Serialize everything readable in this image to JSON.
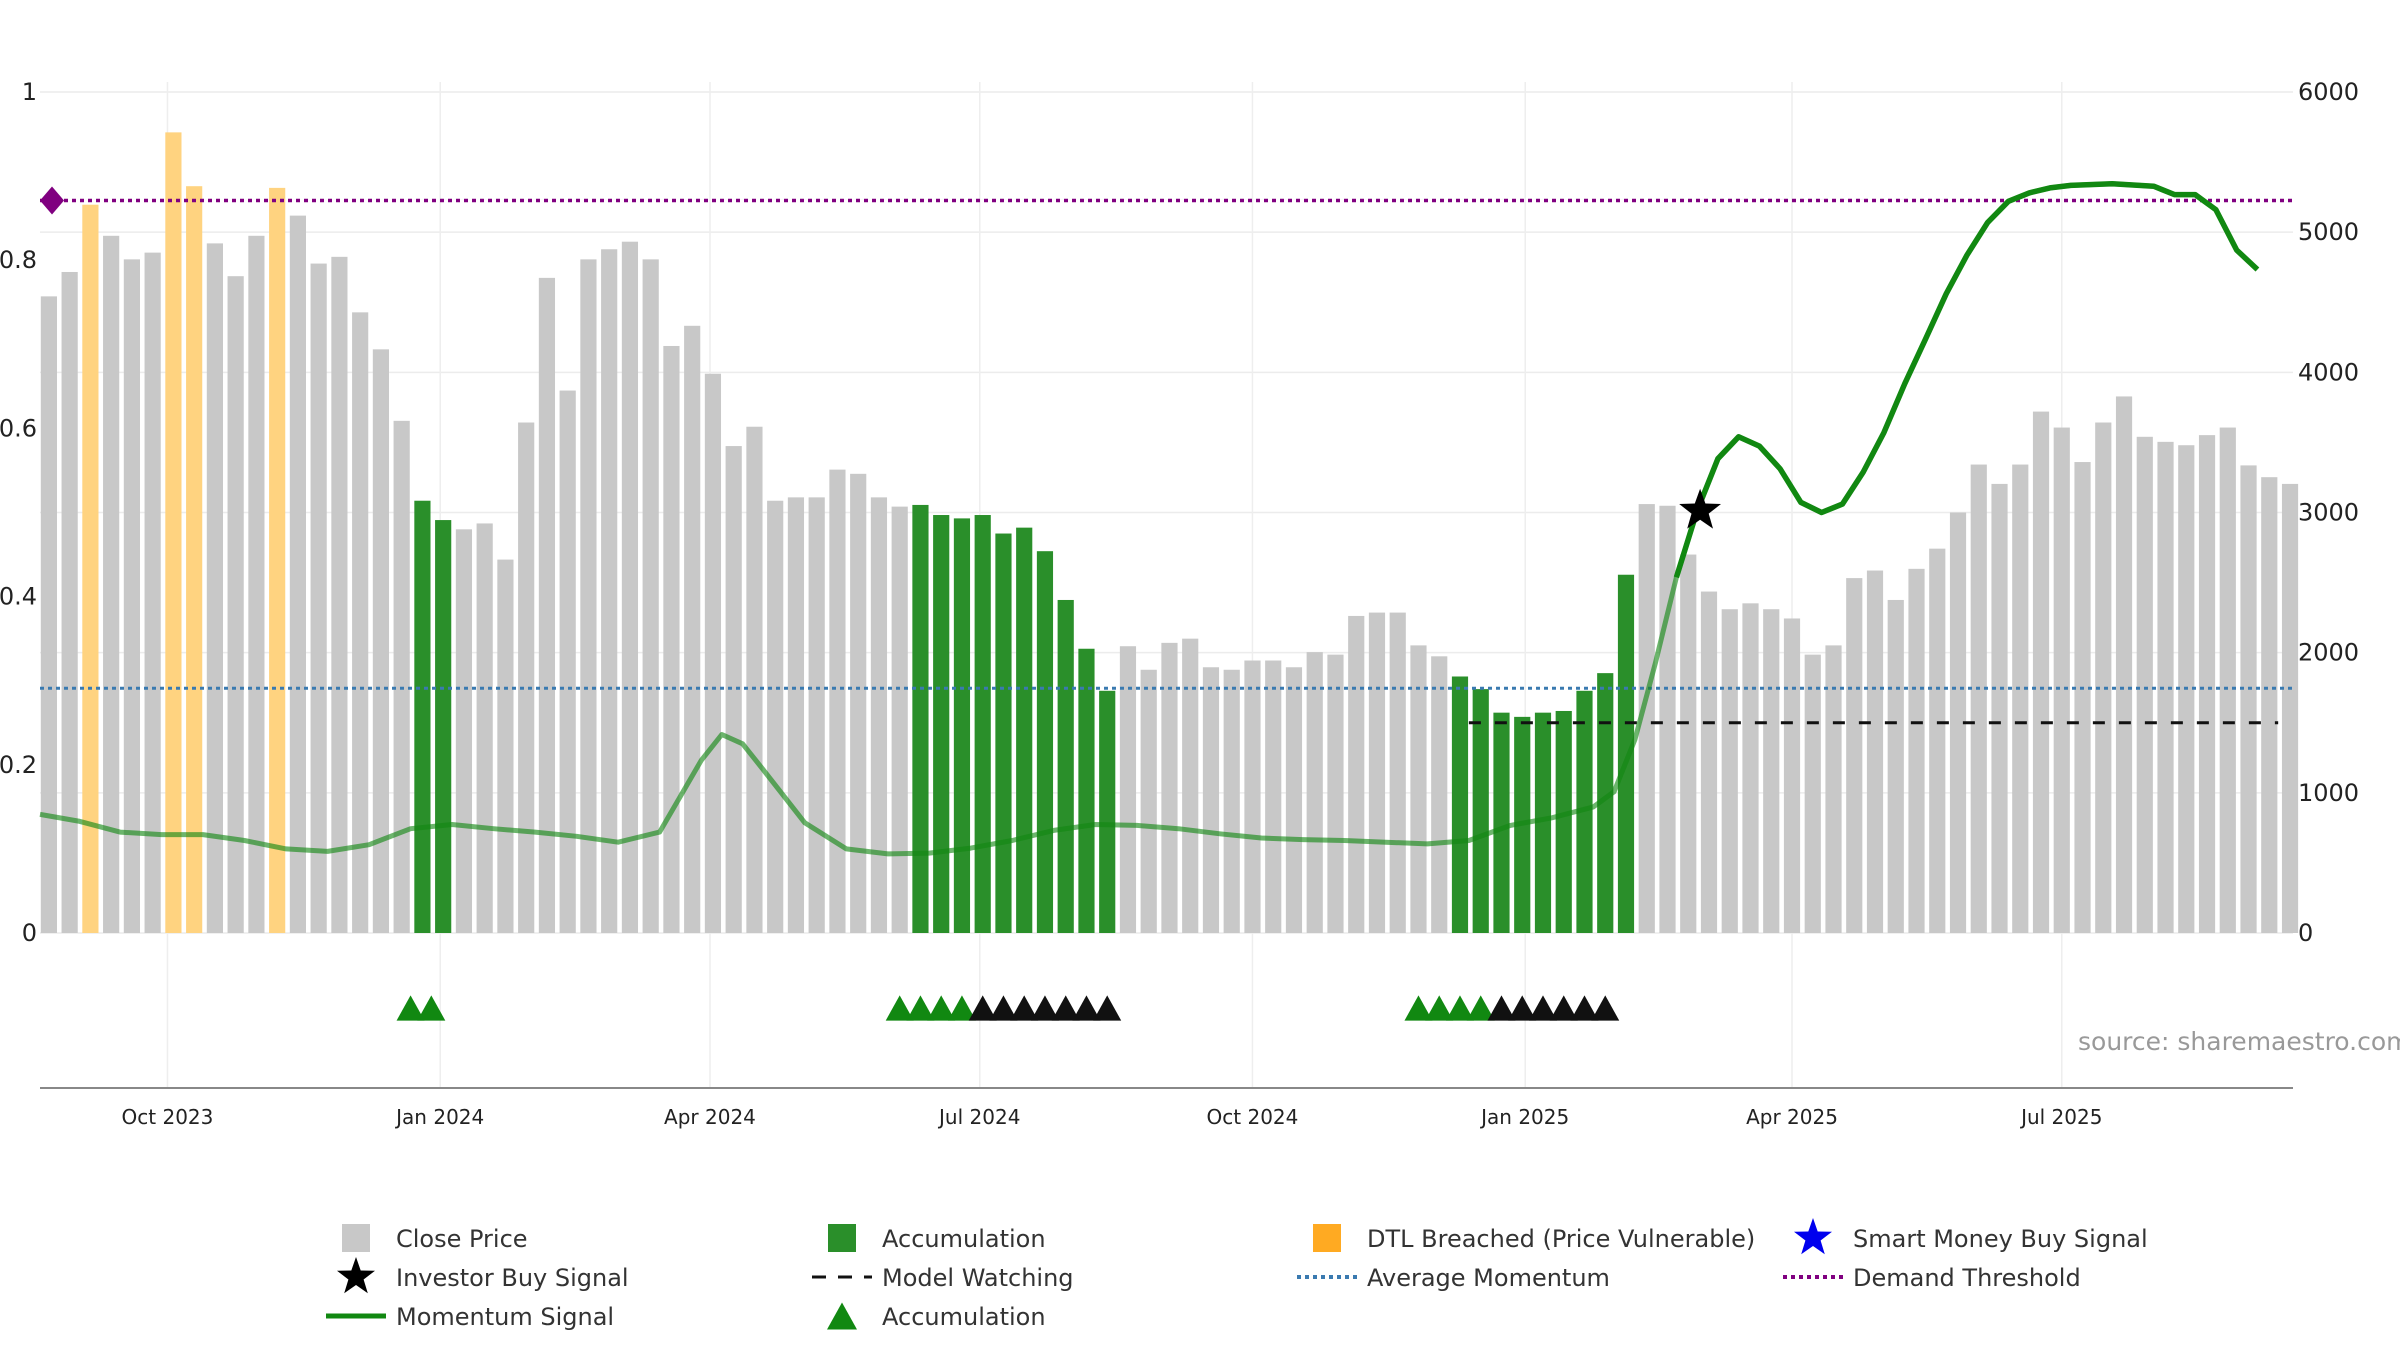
{
  "chart_data": {
    "type": "bar",
    "source": "source: sharemaestro.com",
    "left_axis": {
      "ylim": [
        0,
        1
      ],
      "ticks": [
        "0",
        "0.2",
        "0.4",
        "0.6",
        "0.8",
        "1"
      ]
    },
    "right_axis": {
      "ylim": [
        0,
        6000
      ],
      "ticks": [
        "0",
        "1000",
        "2000",
        "3000",
        "4000",
        "5000",
        "6000"
      ]
    },
    "x_axis": {
      "start": "2023-08-19",
      "end": "2025-09-17",
      "ticks": [
        {
          "label": "Oct 2023",
          "date": "2023-10-01"
        },
        {
          "label": "Jan 2024",
          "date": "2024-01-01"
        },
        {
          "label": "Apr 2024",
          "date": "2024-04-01"
        },
        {
          "label": "Jul 2024",
          "date": "2024-07-01"
        },
        {
          "label": "Oct 2024",
          "date": "2024-10-01"
        },
        {
          "label": "Jan 2025",
          "date": "2025-01-01"
        },
        {
          "label": "Apr 2025",
          "date": "2025-04-01"
        },
        {
          "label": "Jul 2025",
          "date": "2025-07-01"
        }
      ]
    },
    "bars": {
      "name": "Close Price",
      "first_date": "2023-08-22",
      "interval_days": 7,
      "values": [
        0.757,
        0.786,
        0.866,
        0.829,
        0.801,
        0.809,
        0.952,
        0.888,
        0.82,
        0.781,
        0.829,
        0.886,
        0.853,
        0.796,
        0.804,
        0.738,
        0.694,
        0.609,
        0.514,
        0.491,
        0.48,
        0.487,
        0.444,
        0.607,
        0.779,
        0.645,
        0.801,
        0.813,
        0.822,
        0.801,
        0.698,
        0.722,
        0.665,
        0.579,
        0.602,
        0.514,
        0.518,
        0.518,
        0.551,
        0.546,
        0.518,
        0.507,
        0.509,
        0.497,
        0.493,
        0.497,
        0.475,
        0.482,
        0.454,
        0.396,
        0.338,
        0.288,
        0.341,
        0.313,
        0.345,
        0.35,
        0.316,
        0.313,
        0.324,
        0.324,
        0.316,
        0.334,
        0.331,
        0.377,
        0.381,
        0.381,
        0.342,
        0.329,
        0.305,
        0.29,
        0.262,
        0.257,
        0.262,
        0.264,
        0.288,
        0.309,
        0.426,
        0.51,
        0.508,
        0.45,
        0.406,
        0.385,
        0.392,
        0.385,
        0.374,
        0.331,
        0.342,
        0.422,
        0.431,
        0.396,
        0.433,
        0.457,
        0.5,
        0.557,
        0.534,
        0.557,
        0.62,
        0.601,
        0.56,
        0.607,
        0.638,
        0.59,
        0.584,
        0.58,
        0.592,
        0.601,
        0.556,
        0.542,
        0.534
      ],
      "categories": [
        "gray",
        "gray",
        "orange",
        "gray",
        "gray",
        "gray",
        "orange",
        "orange",
        "gray",
        "gray",
        "gray",
        "orange",
        "gray",
        "gray",
        "gray",
        "gray",
        "gray",
        "gray",
        "green",
        "green",
        "gray",
        "gray",
        "gray",
        "gray",
        "gray",
        "gray",
        "gray",
        "gray",
        "gray",
        "gray",
        "gray",
        "gray",
        "gray",
        "gray",
        "gray",
        "gray",
        "gray",
        "gray",
        "gray",
        "gray",
        "gray",
        "gray",
        "green",
        "green",
        "green",
        "green",
        "green",
        "green",
        "green",
        "green",
        "green",
        "green",
        "gray",
        "gray",
        "gray",
        "gray",
        "gray",
        "gray",
        "gray",
        "gray",
        "gray",
        "gray",
        "gray",
        "gray",
        "gray",
        "gray",
        "gray",
        "gray",
        "green",
        "green",
        "green",
        "green",
        "green",
        "green",
        "green",
        "green",
        "green",
        "gray",
        "gray",
        "gray",
        "gray",
        "gray",
        "gray",
        "gray",
        "gray",
        "gray",
        "gray",
        "gray",
        "gray",
        "gray",
        "gray",
        "gray",
        "gray",
        "gray",
        "gray",
        "gray",
        "gray",
        "gray",
        "gray",
        "gray",
        "gray",
        "gray",
        "gray",
        "gray",
        "gray",
        "gray",
        "gray",
        "gray",
        "gray"
      ]
    },
    "momentum": {
      "name": "Momentum Signal",
      "points": [
        [
          "2023-08-19",
          0.141
        ],
        [
          "2023-09-01",
          0.133
        ],
        [
          "2023-09-15",
          0.12
        ],
        [
          "2023-09-29",
          0.117
        ],
        [
          "2023-10-13",
          0.117
        ],
        [
          "2023-10-27",
          0.11
        ],
        [
          "2023-11-10",
          0.1
        ],
        [
          "2023-11-24",
          0.097
        ],
        [
          "2023-12-08",
          0.105
        ],
        [
          "2023-12-22",
          0.124
        ],
        [
          "2024-01-05",
          0.129
        ],
        [
          "2024-01-19",
          0.124
        ],
        [
          "2024-02-02",
          0.12
        ],
        [
          "2024-02-16",
          0.115
        ],
        [
          "2024-03-01",
          0.108
        ],
        [
          "2024-03-15",
          0.12
        ],
        [
          "2024-03-29",
          0.205
        ],
        [
          "2024-04-05",
          0.236
        ],
        [
          "2024-04-12",
          0.225
        ],
        [
          "2024-04-19",
          0.194
        ],
        [
          "2024-05-03",
          0.131
        ],
        [
          "2024-05-17",
          0.1
        ],
        [
          "2024-05-31",
          0.094
        ],
        [
          "2024-06-14",
          0.095
        ],
        [
          "2024-06-28",
          0.101
        ],
        [
          "2024-07-12",
          0.11
        ],
        [
          "2024-07-26",
          0.122
        ],
        [
          "2024-08-09",
          0.129
        ],
        [
          "2024-08-23",
          0.128
        ],
        [
          "2024-09-06",
          0.124
        ],
        [
          "2024-09-20",
          0.118
        ],
        [
          "2024-10-04",
          0.113
        ],
        [
          "2024-10-18",
          0.111
        ],
        [
          "2024-11-01",
          0.11
        ],
        [
          "2024-11-15",
          0.108
        ],
        [
          "2024-11-29",
          0.106
        ],
        [
          "2024-12-13",
          0.11
        ],
        [
          "2024-12-27",
          0.128
        ],
        [
          "2025-01-10",
          0.137
        ],
        [
          "2025-01-24",
          0.15
        ],
        [
          "2025-01-31",
          0.168
        ],
        [
          "2025-02-07",
          0.23
        ],
        [
          "2025-02-14",
          0.322
        ],
        [
          "2025-02-21",
          0.423
        ],
        [
          "2025-02-28",
          0.502
        ],
        [
          "2025-03-07",
          0.564
        ],
        [
          "2025-03-14",
          0.59
        ],
        [
          "2025-03-21",
          0.579
        ],
        [
          "2025-03-28",
          0.552
        ],
        [
          "2025-04-04",
          0.512
        ],
        [
          "2025-04-11",
          0.5
        ],
        [
          "2025-04-18",
          0.51
        ],
        [
          "2025-04-25",
          0.548
        ],
        [
          "2025-05-02",
          0.595
        ],
        [
          "2025-05-09",
          0.653
        ],
        [
          "2025-05-16",
          0.706
        ],
        [
          "2025-05-23",
          0.76
        ],
        [
          "2025-05-30",
          0.806
        ],
        [
          "2025-06-06",
          0.845
        ],
        [
          "2025-06-13",
          0.87
        ],
        [
          "2025-06-20",
          0.88
        ],
        [
          "2025-06-27",
          0.886
        ],
        [
          "2025-07-04",
          0.889
        ],
        [
          "2025-07-18",
          0.891
        ],
        [
          "2025-08-01",
          0.888
        ],
        [
          "2025-08-08",
          0.878
        ],
        [
          "2025-08-15",
          0.878
        ],
        [
          "2025-08-22",
          0.86
        ],
        [
          "2025-08-29",
          0.812
        ],
        [
          "2025-09-05",
          0.789
        ]
      ]
    },
    "average_momentum": {
      "name": "Average Momentum",
      "value": 0.291
    },
    "demand_threshold": {
      "name": "Demand Threshold",
      "value": 0.871
    },
    "model_watching": {
      "name": "Model Watching",
      "value": 0.25,
      "start": "2024-12-13",
      "end": "2025-09-12"
    },
    "investor_buy_signal": {
      "name": "Investor Buy Signal",
      "date": "2025-03-01",
      "value": 0.502
    },
    "accumulation_markers": {
      "name": "Accumulation",
      "green": [
        "2023-12-22",
        "2023-12-29",
        "2024-06-04",
        "2024-06-11",
        "2024-06-18",
        "2024-06-25"
      ],
      "black": [
        "2024-07-02",
        "2024-07-09",
        "2024-07-16",
        "2024-07-23",
        "2024-07-30",
        "2024-08-06",
        "2024-08-13"
      ],
      "green2": [
        "2024-11-26",
        "2024-12-03",
        "2024-12-10",
        "2024-12-17"
      ],
      "black2": [
        "2024-12-24",
        "2024-12-31",
        "2025-01-07",
        "2025-01-14",
        "2025-01-21",
        "2025-01-28"
      ]
    },
    "colors": {
      "gray_bar": "#c8c8c8",
      "green_bar": "#2a8f2a",
      "orange_bar": "#ffd380",
      "momentum": "#118811",
      "average": "#3a7ab0",
      "threshold": "#800080",
      "marker_green": "#118811",
      "marker_black": "#111111"
    },
    "legend": [
      {
        "label": "Close Price",
        "symbol": "square-gray"
      },
      {
        "label": "Accumulation",
        "symbol": "square-green"
      },
      {
        "label": "DTL Breached (Price Vulnerable)",
        "symbol": "square-orange"
      },
      {
        "label": "Smart Money Buy Signal",
        "symbol": "star-blue"
      },
      {
        "label": "Investor Buy Signal",
        "symbol": "star-black"
      },
      {
        "label": "Model Watching",
        "symbol": "dash-black"
      },
      {
        "label": "Average Momentum",
        "symbol": "dot-blue"
      },
      {
        "label": "Demand Threshold",
        "symbol": "dot-purple"
      },
      {
        "label": "Momentum Signal",
        "symbol": "line-green"
      },
      {
        "label": "Accumulation",
        "symbol": "triangle-green"
      }
    ]
  }
}
